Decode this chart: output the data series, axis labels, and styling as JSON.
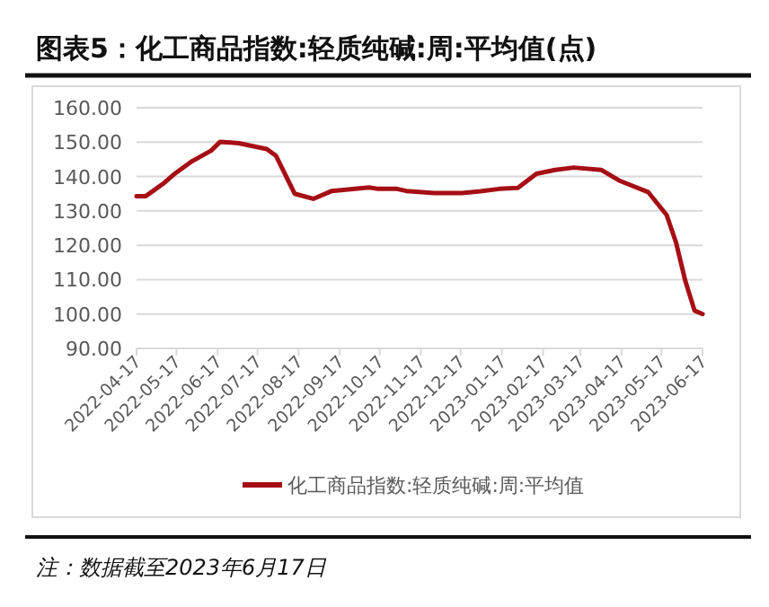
{
  "chart_data": {
    "type": "line",
    "title": "图表5：化工商品指数:轻质纯碱:周:平均值(点)",
    "x": [
      "2022-04-17",
      "2022-04-24",
      "2022-05-08",
      "2022-05-15",
      "2022-05-29",
      "2022-06-12",
      "2022-06-19",
      "2022-07-03",
      "2022-07-24",
      "2022-07-31",
      "2022-08-14",
      "2022-08-28",
      "2022-09-11",
      "2022-10-09",
      "2022-10-16",
      "2022-10-30",
      "2022-11-06",
      "2022-11-27",
      "2022-12-18",
      "2023-01-01",
      "2023-01-15",
      "2023-01-29",
      "2023-02-12",
      "2023-02-26",
      "2023-03-12",
      "2023-04-02",
      "2023-04-16",
      "2023-05-07",
      "2023-05-21",
      "2023-05-28",
      "2023-06-04",
      "2023-06-11",
      "2023-06-17"
    ],
    "series": [
      {
        "name": "化工商品指数:轻质纯碱:周:平均值",
        "color": "#a50f15",
        "values": [
          134.3,
          134.3,
          138.2,
          140.6,
          144.5,
          147.5,
          150.1,
          149.7,
          148.0,
          146.0,
          135.0,
          133.5,
          135.8,
          136.8,
          136.4,
          136.4,
          135.8,
          135.2,
          135.2,
          135.7,
          136.4,
          136.7,
          140.8,
          141.9,
          142.6,
          141.9,
          138.7,
          135.5,
          128.8,
          120.9,
          109.7,
          101.0,
          100.0
        ]
      }
    ],
    "xlim": [
      "2022-04-17",
      "2023-06-17"
    ],
    "xticks": [
      "2022-04-17",
      "2022-05-17",
      "2022-06-17",
      "2022-07-17",
      "2022-08-17",
      "2022-09-17",
      "2022-10-17",
      "2022-11-17",
      "2022-12-17",
      "2023-01-17",
      "2023-02-17",
      "2023-03-17",
      "2023-04-17",
      "2023-05-17",
      "2023-06-17"
    ],
    "ylim": [
      90,
      160
    ],
    "yticks": [
      {
        "value": 90,
        "label": "90.00"
      },
      {
        "value": 100,
        "label": "100.00"
      },
      {
        "value": 110,
        "label": "110.00"
      },
      {
        "value": 120,
        "label": "120.00"
      },
      {
        "value": 130,
        "label": "130.00"
      },
      {
        "value": 140,
        "label": "140.00"
      },
      {
        "value": 150,
        "label": "150.00"
      },
      {
        "value": 160,
        "label": "160.00"
      }
    ],
    "grid": "y",
    "legend": "bottom",
    "annotations": [
      "注：数据截至2023年6月17日"
    ]
  }
}
